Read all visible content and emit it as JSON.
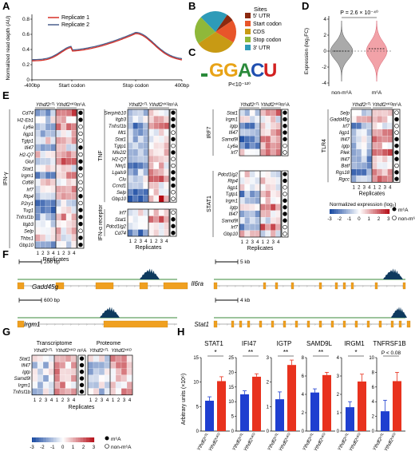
{
  "panels": [
    "A",
    "B",
    "C",
    "D",
    "E",
    "F",
    "G",
    "H"
  ],
  "panelA": {
    "ylabel": "Normalized read depth (AU)",
    "yticks": [
      "0",
      "0.2",
      "0.4",
      "0.6",
      "0.8"
    ],
    "xticks": [
      "-400bp",
      "Start codon",
      "Stop codon",
      "400bp"
    ],
    "legend": [
      {
        "name": "Replicate 1",
        "color": "#d73027"
      },
      {
        "name": "Replicate 2",
        "color": "#4a5f8c"
      }
    ]
  },
  "panelB": {
    "title": "Sites",
    "slices": [
      {
        "name": "5' UTR",
        "color": "#8b2a10"
      },
      {
        "name": "Start codon",
        "color": "#e8552a"
      },
      {
        "name": "CDS",
        "color": "#c89a14"
      },
      {
        "name": "Stop codon",
        "color": "#8fb83a"
      },
      {
        "name": "3' UTR",
        "color": "#2e9bb8"
      }
    ]
  },
  "panelC": {
    "motif": "GGACU",
    "pvalue": "P<10⁻¹²⁰"
  },
  "panelD": {
    "pvalue": "P = 2.6 × 10⁻⁴⁰",
    "ylabel": "Expression (log₂FC)",
    "yticks": [
      "4",
      "2",
      "0",
      "-2",
      "-4"
    ],
    "groups": [
      {
        "name": "non-m⁶A",
        "color": "#aaaaaa"
      },
      {
        "name": "m⁶A",
        "color": "#f2a2a8"
      }
    ]
  },
  "heatmapCommon": {
    "ctl": "Ythdf2ᶜᵀᴸ",
    "cko": "Ythdf2ᶜᴷᴼ",
    "m6a": "m⁶A",
    "replicates": "Replicates",
    "cols": [
      "1",
      "2",
      "3",
      "4",
      "1",
      "2",
      "3",
      "4"
    ]
  },
  "panelE": {
    "ifng": {
      "label": "IFN-γ",
      "genes": [
        "Cd74",
        "H2-Eb1",
        "Ly6a",
        "Iigp1",
        "Tgtp1",
        "Ifi47",
        "H2-Q7",
        "Glul",
        "Stat1",
        "Irgm1",
        "Cd68",
        "Irf7",
        "Rtp4",
        "P2ry1",
        "Tug1",
        "Tnfrsf1b",
        "Itgb3",
        "Selp",
        "Thbs1",
        "Gbp10"
      ],
      "m6a": [
        1,
        1,
        0,
        0,
        0,
        1,
        0,
        1,
        1,
        0,
        0,
        0,
        1,
        0,
        1,
        1,
        1,
        0,
        1,
        1
      ],
      "seed": 3
    },
    "tnf": {
      "label": "TNF",
      "genes": [
        "Serpinb10",
        "Itgb3",
        "Tnfrsf1b",
        "Mt1",
        "Stat1",
        "Tgtp1",
        "Nfe2l2",
        "H2-Q7",
        "Ninj1",
        "Lgals9",
        "Clu",
        "Ccnd1",
        "Selp",
        "Gbp10"
      ],
      "m6a": [
        1,
        1,
        1,
        0,
        1,
        0,
        1,
        0,
        0,
        1,
        1,
        1,
        0,
        0
      ],
      "seed": 7
    },
    "ifna": {
      "label": "IFN-α receptor",
      "genes": [
        "Irf7",
        "Stat1",
        "Pdcd1lg2",
        "Cd74"
      ],
      "m6a": [
        0,
        1,
        1,
        1
      ],
      "seed": 11
    },
    "irf7": {
      "label": "IRF7",
      "genes": [
        "Stat1",
        "Irgm1",
        "Igtp",
        "Ifi47",
        "Samd9l",
        "Ly6a",
        "Irf7"
      ],
      "m6a": [
        1,
        1,
        1,
        1,
        1,
        0,
        0
      ],
      "seed": 13
    },
    "stat1": {
      "label": "STAT1",
      "genes": [
        "Pdcd1lg2",
        "Rtp4",
        "Iigp1",
        "Tgtp1",
        "Irgm1",
        "Igtp",
        "Ifi47",
        "Samd9l",
        "Irf7",
        "Gbp10"
      ],
      "m6a": [
        1,
        1,
        0,
        0,
        1,
        1,
        1,
        1,
        0,
        0
      ],
      "seed": 17
    },
    "tlr4": {
      "label": "TLR4",
      "genes": [
        "Selp",
        "Gadd45g",
        "Irf7",
        "Iigp1",
        "Ifi47",
        "Igtp",
        "Plek",
        "Ifi47",
        "Batf",
        "Rgs18",
        "Rgcc"
      ],
      "m6a": [
        0,
        1,
        0,
        0,
        1,
        1,
        1,
        1,
        0,
        1,
        1
      ],
      "seed": 19
    },
    "legendTitle": "Normalized expression (log₂)",
    "legendTicks": [
      "-3",
      "-2",
      "-1",
      "0",
      "1",
      "2",
      "3"
    ],
    "legendM6a": "m⁶A",
    "legendNon": "non-m⁶A"
  },
  "panelF": {
    "tracks": [
      {
        "gene": "Gadd45g",
        "scale": "200 bp"
      },
      {
        "gene": "Il6ra",
        "scale": "5 kb"
      },
      {
        "gene": "Irgm1",
        "scale": "600 bp"
      },
      {
        "gene": "Stat1",
        "scale": "4 kb"
      }
    ]
  },
  "panelG": {
    "transcriptome": "Transcriptome",
    "proteome": "Proteome",
    "genes": [
      "Stat1",
      "Ifi47",
      "Igtp",
      "Samd9l",
      "Irgm1",
      "Tnfrsf1b"
    ],
    "m6a": [
      1,
      1,
      1,
      1,
      1,
      1
    ],
    "legendTicks": [
      "-3",
      "-2",
      "-1",
      "0",
      "1",
      "2",
      "3"
    ]
  },
  "panelH": {
    "ylabel": "Arbitrary units (×10⁶)",
    "xlabels": [
      "Ythdf2ᶜᵀᴸ",
      "Ythdf2ᶜᴷᴼ"
    ],
    "charts": [
      {
        "title": "STAT1",
        "sig": "*",
        "values": [
          6.2,
          10.2
        ],
        "err": [
          0.8,
          0.9
        ],
        "ymax": 15,
        "yticks": [
          "0",
          "5",
          "10",
          "15"
        ]
      },
      {
        "title": "IFI47",
        "sig": "**",
        "values": [
          12.5,
          18.5
        ],
        "err": [
          1.2,
          1.0
        ],
        "ymax": 25,
        "yticks": [
          "0",
          "5",
          "10",
          "15",
          "20",
          "25"
        ]
      },
      {
        "title": "IGTP",
        "sig": "**",
        "values": [
          1.3,
          2.7
        ],
        "err": [
          0.3,
          0.2
        ],
        "ymax": 3,
        "yticks": [
          "0",
          "1",
          "2",
          "3"
        ]
      },
      {
        "title": "SAMD9L",
        "sig": "**",
        "values": [
          4.2,
          6.1
        ],
        "err": [
          0.4,
          0.3
        ],
        "ymax": 8,
        "yticks": [
          "0",
          "2",
          "4",
          "6",
          "8"
        ]
      },
      {
        "title": "IRGM1",
        "sig": "*",
        "values": [
          1.3,
          2.7
        ],
        "err": [
          0.3,
          0.4
        ],
        "ymax": 4,
        "yticks": [
          "0",
          "1",
          "2",
          "3",
          "4"
        ]
      },
      {
        "title": "TNFRSF1B",
        "sig": "P < 0.08",
        "values": [
          2.7,
          6.8
        ],
        "err": [
          1.5,
          1.2
        ],
        "ymax": 10,
        "yticks": [
          "0",
          "2",
          "4",
          "6",
          "8",
          "10"
        ]
      }
    ],
    "colors": [
      "#1f3fd0",
      "#e8321e"
    ]
  }
}
